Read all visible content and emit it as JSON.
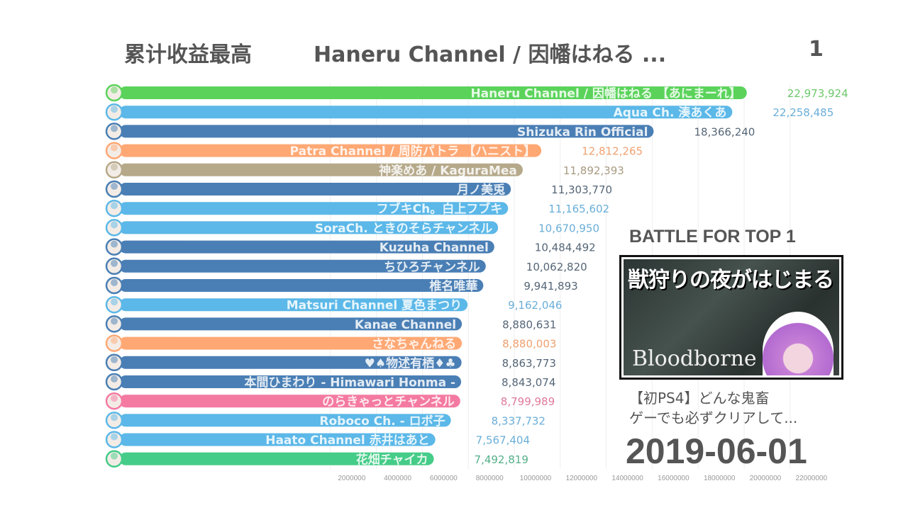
{
  "header": {
    "metric": "累计收益最高",
    "leader": "Haneru Channel / 因幡はねる ...",
    "leader_rank": "1"
  },
  "side": {
    "battle_title": "BATTLE FOR TOP 1",
    "thumbnail_title": "獣狩りの夜がはじまる",
    "thumbnail_game": "Bloodborne",
    "video_title": "【初PS4】どんな鬼畜\nゲーでも必ずクリアして...",
    "date": "2019-06-01"
  },
  "chart_data": {
    "type": "bar",
    "orientation": "horizontal",
    "title": "累计收益最高",
    "date": "2019-06-01",
    "xticks": [
      2000000,
      4000000,
      6000000,
      8000000,
      10000000,
      12000000,
      14000000,
      16000000,
      18000000,
      20000000,
      22000000
    ],
    "xtick_labels": [
      "2000000",
      "4000000",
      "6000000",
      "8000000",
      "10000000",
      "12000000",
      "14000000",
      "16000000",
      "18000000",
      "20000000",
      "22000000"
    ],
    "grid": true,
    "bars": [
      {
        "name": "Haneru Channel / 因幡はねる 【あにまーれ】",
        "value": 22973924,
        "label": "22,973,924",
        "color": "#5bd35b",
        "text_color": "#6cc86c"
      },
      {
        "name": "Aqua Ch. 湊あくあ",
        "value": 22258485,
        "label": "22,258,485",
        "color": "#5bb8e8",
        "text_color": "#6aaed8"
      },
      {
        "name": "Shizuka Rin Official",
        "value": 18366240,
        "label": "18,366,240",
        "color": "#4a7fb5",
        "text_color": "#556677"
      },
      {
        "name": "Patra Channel / 周防パトラ 【ハニスト】",
        "value": 12812265,
        "label": "12,812,265",
        "color": "#ffa874",
        "text_color": "#f0a070"
      },
      {
        "name": "神楽めあ / KaguraMea",
        "value": 11892393,
        "label": "11,892,393",
        "color": "#b5a98a",
        "text_color": "#a89a80"
      },
      {
        "name": "月ノ美兎",
        "value": 11303770,
        "label": "11,303,770",
        "color": "#4a7fb5",
        "text_color": "#556677"
      },
      {
        "name": "フブキCh。白上フブキ",
        "value": 11165602,
        "label": "11,165,602",
        "color": "#5bb8e8",
        "text_color": "#6aaed8"
      },
      {
        "name": "SoraCh. ときのそらチャンネル",
        "value": 10670950,
        "label": "10,670,950",
        "color": "#5bb8e8",
        "text_color": "#6aaed8"
      },
      {
        "name": "Kuzuha Channel",
        "value": 10484492,
        "label": "10,484,492",
        "color": "#4a7fb5",
        "text_color": "#556677"
      },
      {
        "name": "ちひろチャンネル",
        "value": 10062820,
        "label": "10,062,820",
        "color": "#4a7fb5",
        "text_color": "#556677"
      },
      {
        "name": "椎名唯華",
        "value": 9941893,
        "label": "9,941,893",
        "color": "#4a7fb5",
        "text_color": "#556677"
      },
      {
        "name": "Matsuri Channel 夏色まつり",
        "value": 9162046,
        "label": "9,162,046",
        "color": "#5bb8e8",
        "text_color": "#6aaed8"
      },
      {
        "name": "Kanae Channel",
        "value": 8880631,
        "label": "8,880,631",
        "color": "#4a7fb5",
        "text_color": "#556677"
      },
      {
        "name": "さなちゃんねる",
        "value": 8880003,
        "label": "8,880,003",
        "color": "#ffa874",
        "text_color": "#f0a070"
      },
      {
        "name": "♥♠物述有栖♦♣",
        "value": 8863773,
        "label": "8,863,773",
        "color": "#4a7fb5",
        "text_color": "#556677"
      },
      {
        "name": "本間ひまわり - Himawari Honma -",
        "value": 8843074,
        "label": "8,843,074",
        "color": "#4a7fb5",
        "text_color": "#556677"
      },
      {
        "name": "のらきゃっとチャンネル",
        "value": 8799989,
        "label": "8,799,989",
        "color": "#f47aa2",
        "text_color": "#e07a9a"
      },
      {
        "name": "Roboco Ch. - ロボ子",
        "value": 8337732,
        "label": "8,337,732",
        "color": "#5bb8e8",
        "text_color": "#6aaed8"
      },
      {
        "name": "Haato Channel 赤井はあと",
        "value": 7567404,
        "label": "7,567,404",
        "color": "#5bb8e8",
        "text_color": "#6aaed8"
      },
      {
        "name": "花畑チャイカ",
        "value": 7492819,
        "label": "7,492,819",
        "color": "#45cc88",
        "text_color": "#55b088"
      }
    ]
  }
}
